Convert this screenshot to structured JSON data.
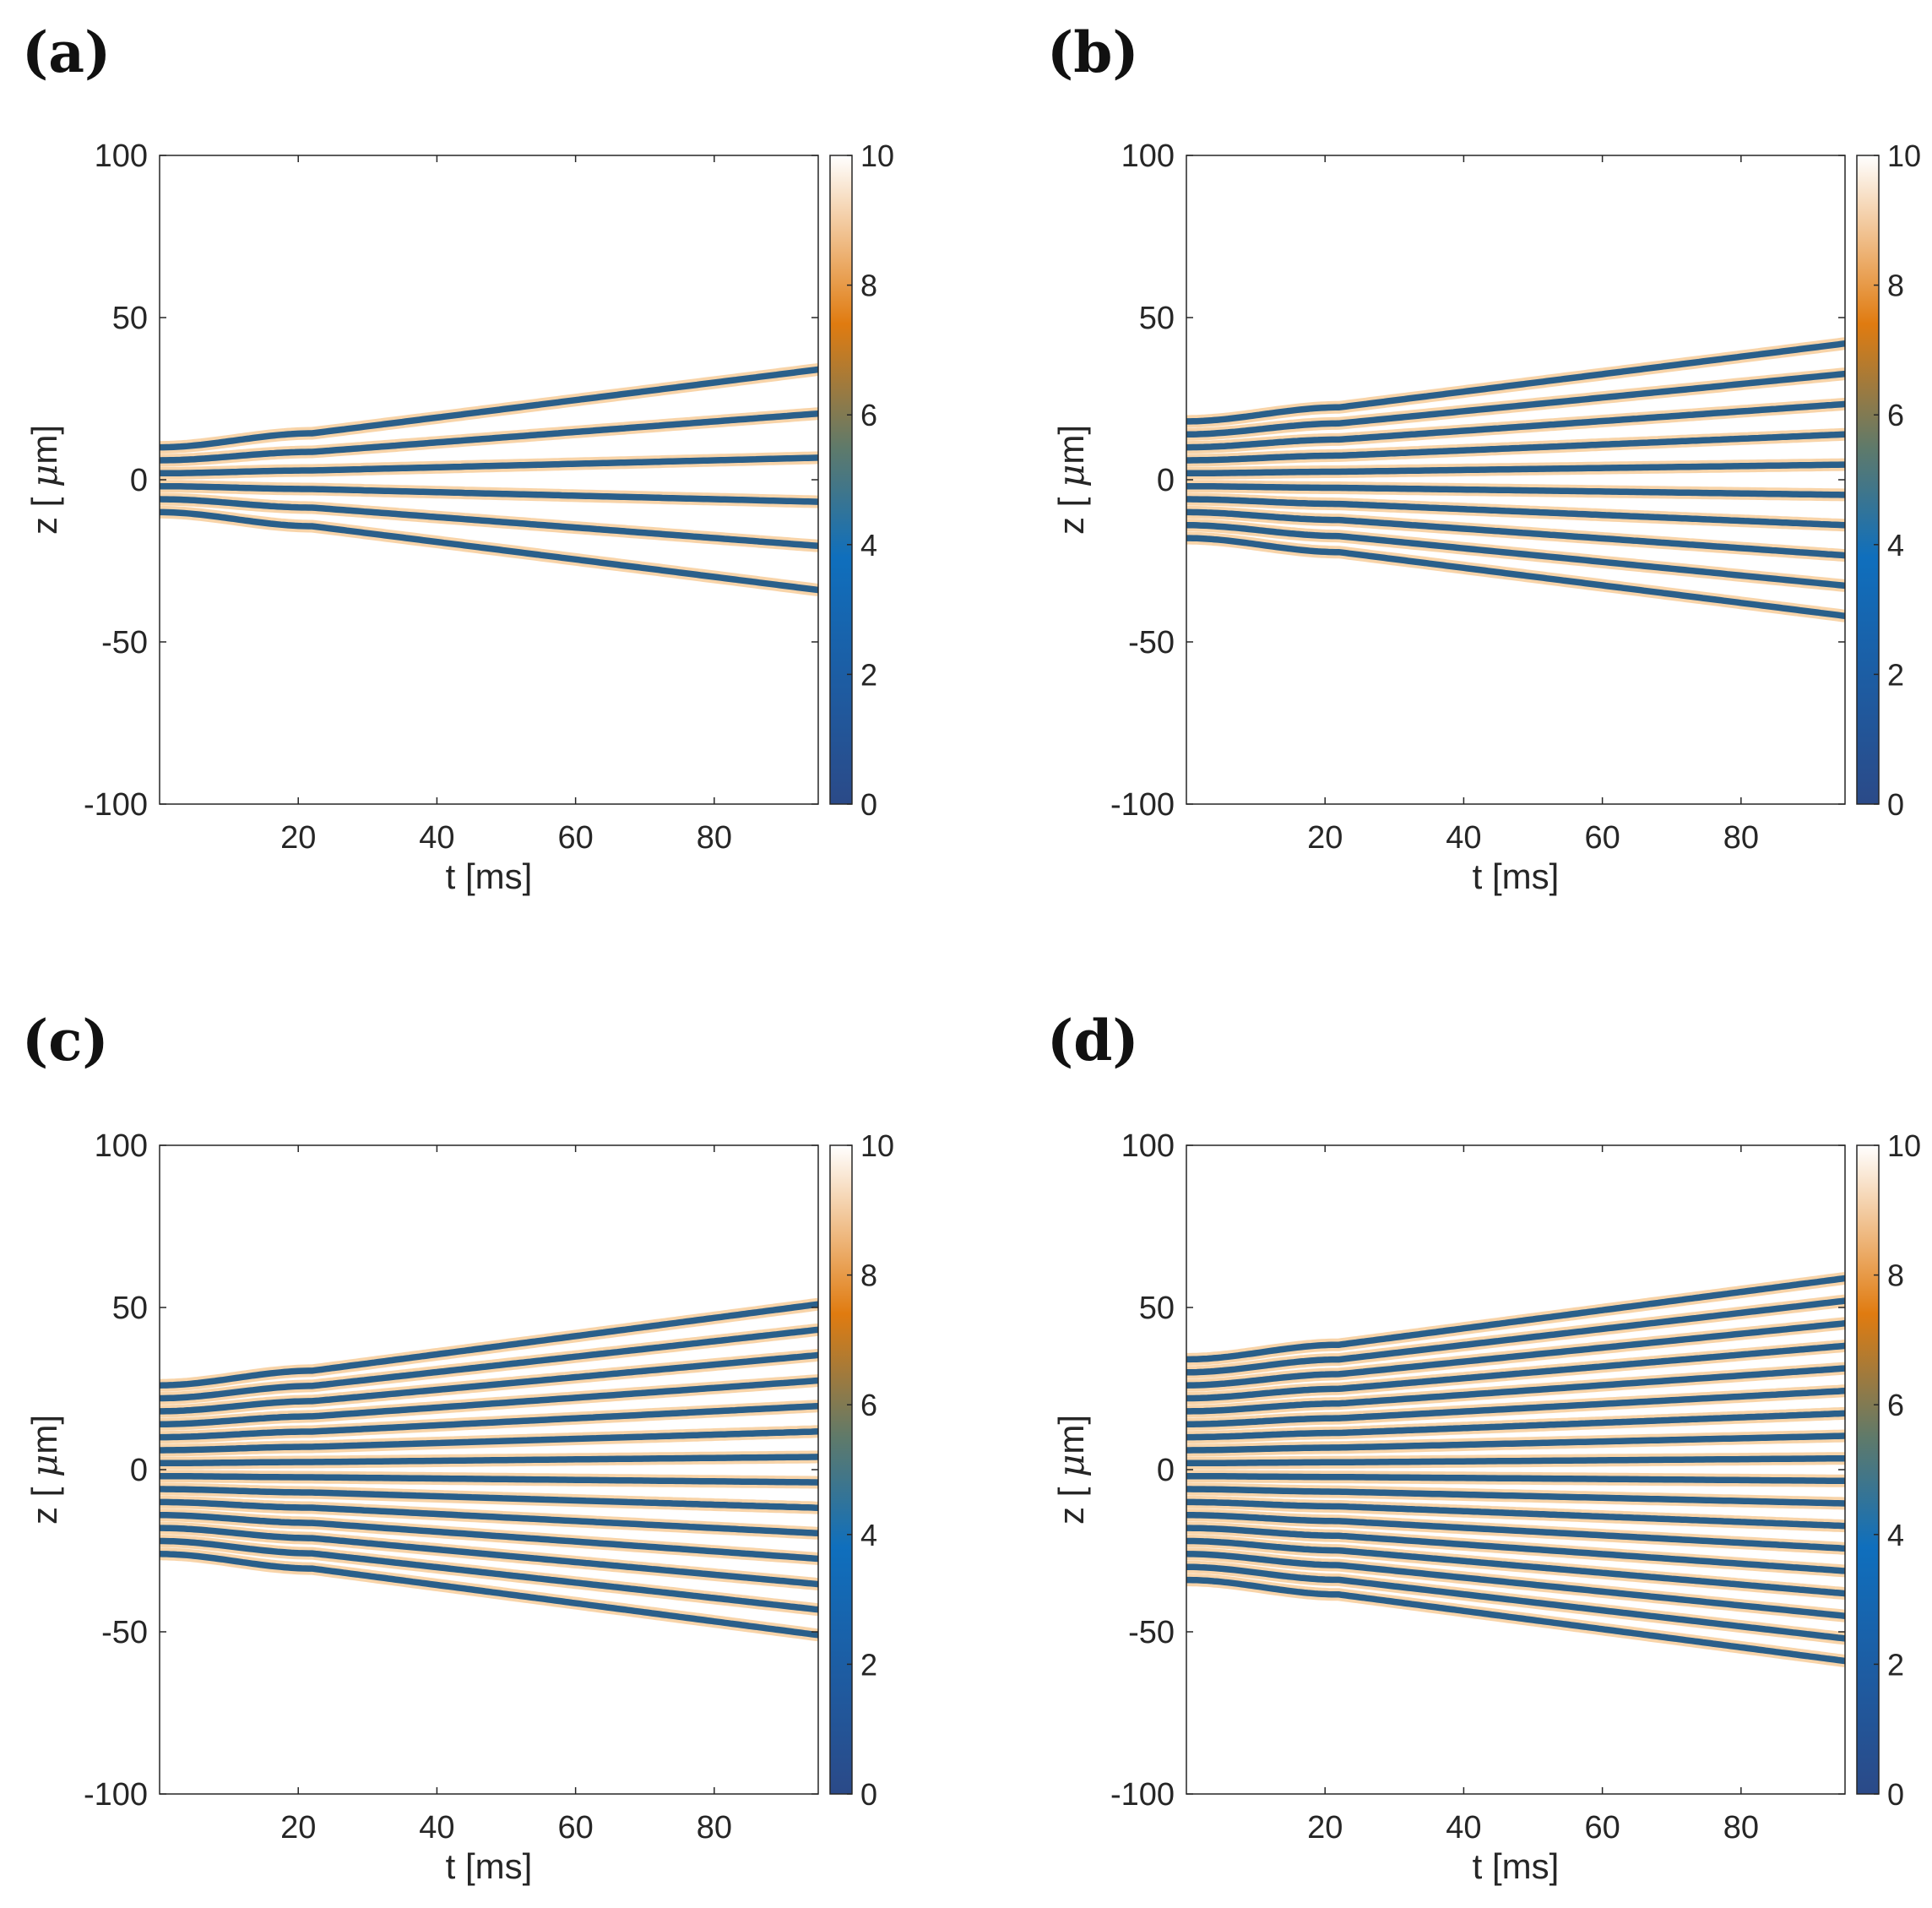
{
  "figure": {
    "colorbar": {
      "ticks": [
        "0",
        "2",
        "4",
        "6",
        "8",
        "10"
      ],
      "range": [
        0,
        10
      ],
      "colors": {
        "low": "#2b4a88",
        "blue": "#0f6fbd",
        "mid": "#5f7a6a",
        "orange": "#e07b10",
        "high": "#ffffff"
      }
    },
    "line_color": "#2a5f8a",
    "halo_color": "#f0a040",
    "frame_color": "#262626"
  },
  "chart_data": [
    {
      "panel_label": "(a)",
      "type": "heatmap",
      "xlabel": "t [ms]",
      "ylabel_prefix": "z [ ",
      "ylabel_mu": "μ",
      "ylabel_suffix": "m]",
      "xlim": [
        0,
        95
      ],
      "ylim": [
        -100,
        100
      ],
      "xticks": [
        "20",
        "40",
        "60",
        "80"
      ],
      "yticks": [
        "-100",
        "-50",
        "0",
        "50",
        "100"
      ],
      "n_lines": 6,
      "z_start_outer": 10,
      "z_end_outer": 34
    },
    {
      "panel_label": "(b)",
      "type": "heatmap",
      "xlabel": "t [ms]",
      "ylabel_prefix": "z [ ",
      "ylabel_mu": "μ",
      "ylabel_suffix": "m]",
      "xlim": [
        0,
        95
      ],
      "ylim": [
        -100,
        100
      ],
      "xticks": [
        "20",
        "40",
        "60",
        "80"
      ],
      "yticks": [
        "-100",
        "-50",
        "0",
        "50",
        "100"
      ],
      "n_lines": 10,
      "z_start_outer": 18,
      "z_end_outer": 42
    },
    {
      "panel_label": "(c)",
      "type": "heatmap",
      "xlabel": "t [ms]",
      "ylabel_prefix": "z [ ",
      "ylabel_mu": "μ",
      "ylabel_suffix": "m]",
      "xlim": [
        0,
        95
      ],
      "ylim": [
        -100,
        100
      ],
      "xticks": [
        "20",
        "40",
        "60",
        "80"
      ],
      "yticks": [
        "-100",
        "-50",
        "0",
        "50",
        "100"
      ],
      "n_lines": 14,
      "z_start_outer": 26,
      "z_end_outer": 51
    },
    {
      "panel_label": "(d)",
      "type": "heatmap",
      "xlabel": "t [ms]",
      "ylabel_prefix": "z [ ",
      "ylabel_mu": "μ",
      "ylabel_suffix": "m]",
      "xlim": [
        0,
        95
      ],
      "ylim": [
        -100,
        100
      ],
      "xticks": [
        "20",
        "40",
        "60",
        "80"
      ],
      "yticks": [
        "-100",
        "-50",
        "0",
        "50",
        "100"
      ],
      "n_lines": 18,
      "z_start_outer": 34,
      "z_end_outer": 59
    }
  ]
}
